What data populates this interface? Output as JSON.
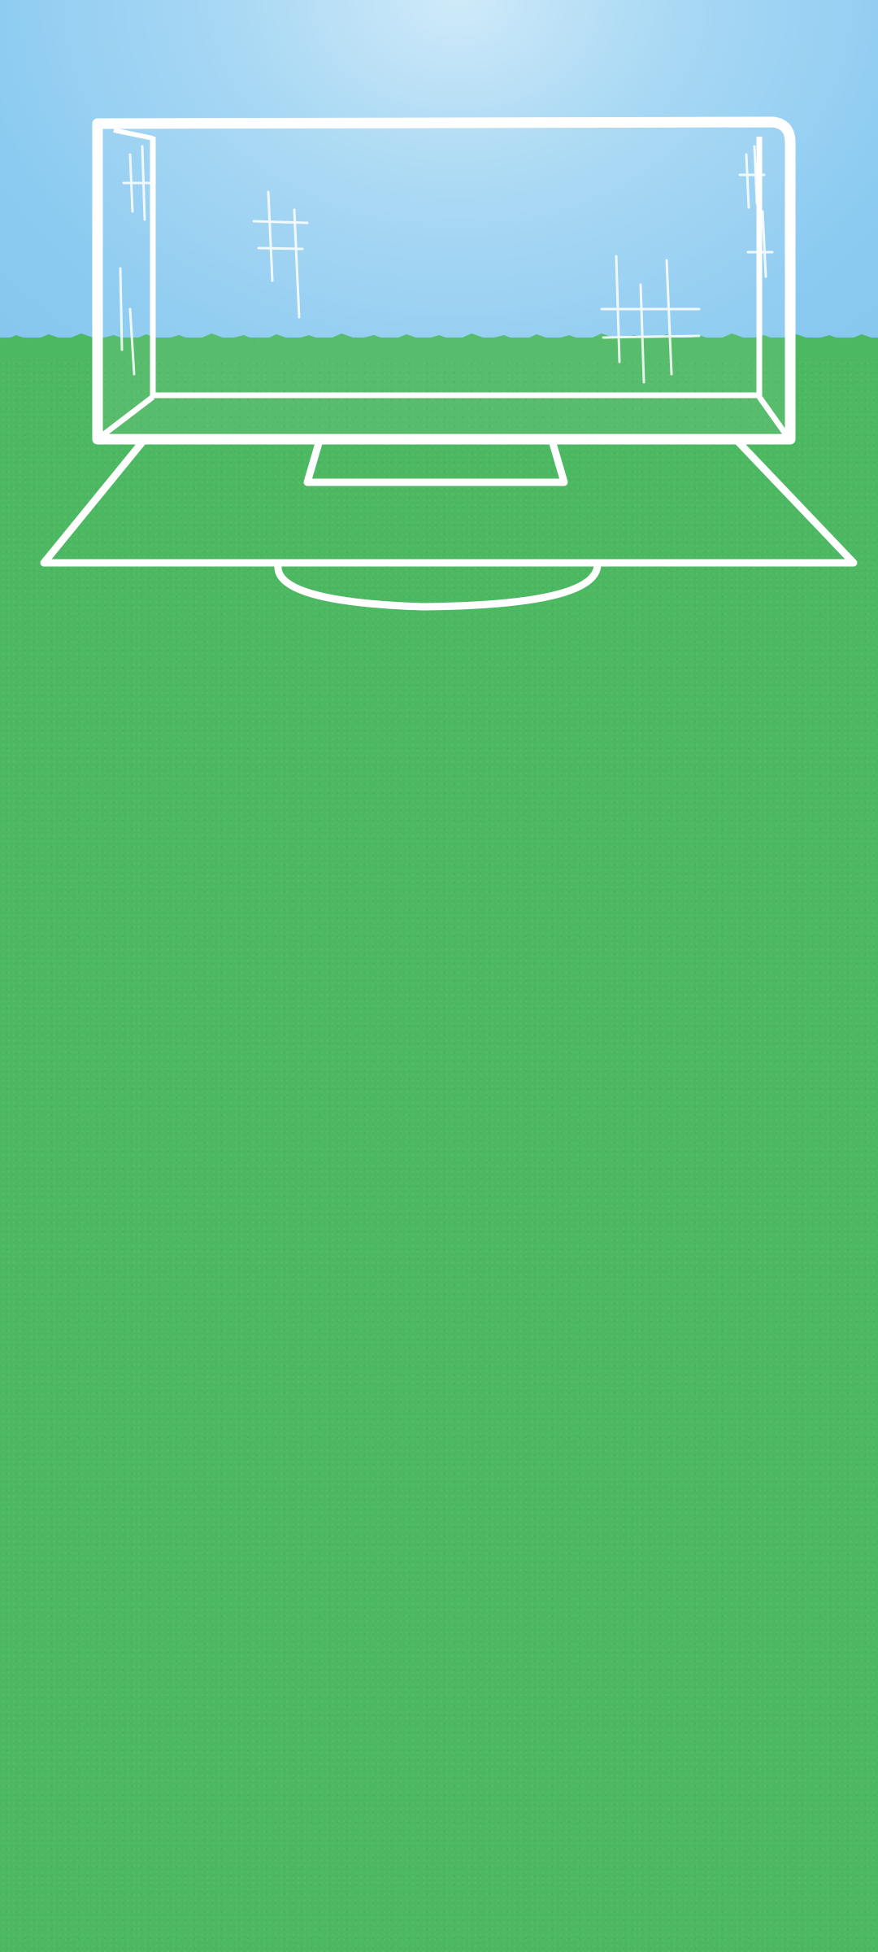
{
  "scene": {
    "sky_color": "#8ccbf1",
    "grass_color": "#4db862",
    "line_color": "#ffffff",
    "objects": [
      "goal-net",
      "penalty-area",
      "goal-area",
      "penalty-arc"
    ]
  }
}
